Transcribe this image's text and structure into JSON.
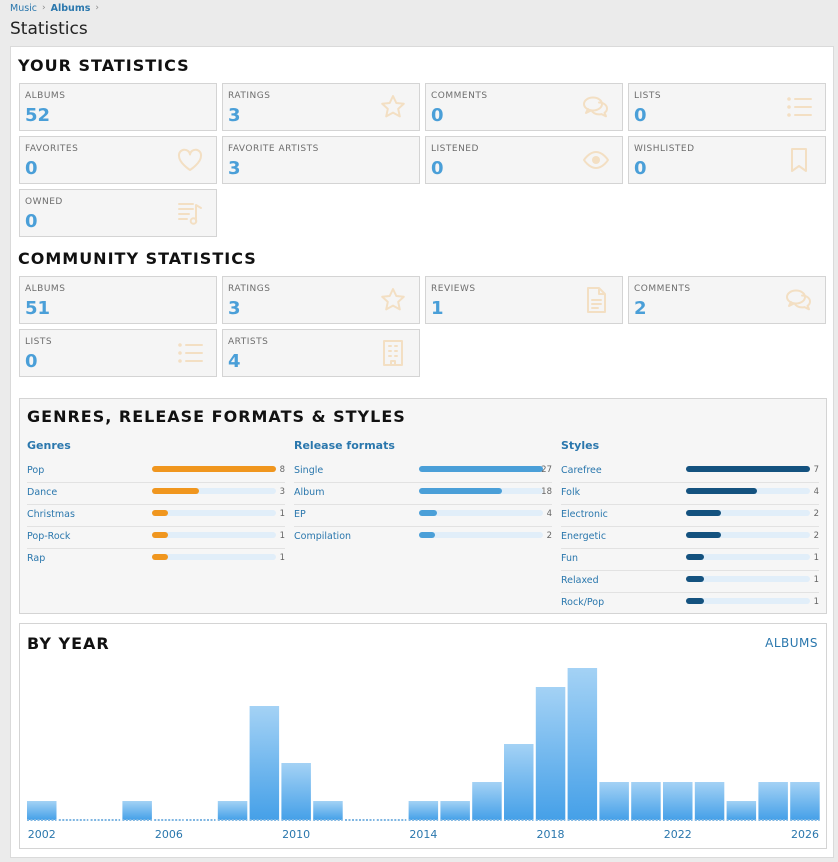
{
  "breadcrumb": {
    "item1": "Music",
    "item2": "Albums"
  },
  "page_title": "Statistics",
  "your_statistics": {
    "title": "YOUR STATISTICS",
    "cards": [
      {
        "label": "ALBUMS",
        "value": "52",
        "icon": ""
      },
      {
        "label": "RATINGS",
        "value": "3",
        "icon": "star-icon"
      },
      {
        "label": "COMMENTS",
        "value": "0",
        "icon": "comments-icon"
      },
      {
        "label": "LISTS",
        "value": "0",
        "icon": "list-icon"
      },
      {
        "label": "FAVORITES",
        "value": "0",
        "icon": "heart-icon"
      },
      {
        "label": "FAVORITE ARTISTS",
        "value": "3",
        "icon": ""
      },
      {
        "label": "LISTENED",
        "value": "0",
        "icon": "eye-icon"
      },
      {
        "label": "WISHLISTED",
        "value": "0",
        "icon": "bookmark-icon"
      },
      {
        "label": "OWNED",
        "value": "0",
        "icon": "playlist-icon"
      }
    ]
  },
  "community_statistics": {
    "title": "COMMUNITY STATISTICS",
    "cards": [
      {
        "label": "ALBUMS",
        "value": "51",
        "icon": ""
      },
      {
        "label": "RATINGS",
        "value": "3",
        "icon": "star-icon"
      },
      {
        "label": "REVIEWS",
        "value": "1",
        "icon": "document-icon"
      },
      {
        "label": "COMMENTS",
        "value": "2",
        "icon": "comments-icon"
      },
      {
        "label": "LISTS",
        "value": "0",
        "icon": "list-icon"
      },
      {
        "label": "ARTISTS",
        "value": "4",
        "icon": "building-icon"
      }
    ]
  },
  "genres_section": {
    "title": "GENRES, RELEASE FORMATS & STYLES",
    "columns": [
      {
        "heading": "Genres",
        "color": "#f0961e",
        "max": 8,
        "items": [
          {
            "label": "Pop",
            "count": 8
          },
          {
            "label": "Dance",
            "count": 3
          },
          {
            "label": "Christmas",
            "count": 1
          },
          {
            "label": "Pop-Rock",
            "count": 1
          },
          {
            "label": "Rap",
            "count": 1
          }
        ]
      },
      {
        "heading": "Release formats",
        "color": "#4a9fd8",
        "max": 27,
        "items": [
          {
            "label": "Single",
            "count": 27
          },
          {
            "label": "Album",
            "count": 18
          },
          {
            "label": "EP",
            "count": 4
          },
          {
            "label": "Compilation",
            "count": 2
          }
        ]
      },
      {
        "heading": "Styles",
        "color": "#14527f",
        "max": 7,
        "items": [
          {
            "label": "Carefree",
            "count": 7
          },
          {
            "label": "Folk",
            "count": 4
          },
          {
            "label": "Electronic",
            "count": 2
          },
          {
            "label": "Energetic",
            "count": 2
          },
          {
            "label": "Fun",
            "count": 1
          },
          {
            "label": "Relaxed",
            "count": 1
          },
          {
            "label": "Rock/Pop",
            "count": 1
          }
        ]
      }
    ]
  },
  "by_year": {
    "title": "BY YEAR",
    "link_label": "ALBUMS"
  },
  "chart_data": {
    "type": "bar",
    "title": "BY YEAR",
    "categories": [
      2002,
      2003,
      2004,
      2005,
      2006,
      2007,
      2008,
      2009,
      2010,
      2011,
      2012,
      2013,
      2014,
      2015,
      2016,
      2017,
      2018,
      2019,
      2020,
      2021,
      2022,
      2023,
      2024,
      2025,
      2026
    ],
    "values": [
      1,
      0,
      0,
      1,
      0,
      0,
      1,
      6,
      3,
      1,
      0,
      0,
      1,
      1,
      2,
      4,
      7,
      8,
      2,
      2,
      2,
      2,
      1,
      2,
      2
    ],
    "x_tick_labels": [
      "2002",
      "2006",
      "2010",
      "2014",
      "2018",
      "2022",
      "2026"
    ],
    "ylim": [
      0,
      8
    ],
    "grid": false,
    "bar_color_top": "#a4d2f5",
    "bar_color_bottom": "#45a0e8"
  },
  "colors": {
    "accent": "#4a9fd8",
    "link": "#2a77ad",
    "icon": "#f3dfc3"
  }
}
